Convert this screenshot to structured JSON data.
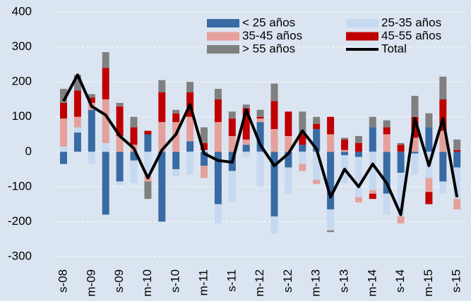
{
  "chart_data": {
    "type": "bar",
    "stacked": true,
    "categories": [
      "s-08",
      null,
      "m-09",
      null,
      "s-09",
      null,
      "m-10",
      null,
      "s-10",
      null,
      "m-11",
      null,
      "s-11",
      null,
      "m-12",
      null,
      "s-12",
      null,
      "m-13",
      null,
      "s-13",
      null,
      "m-14",
      null,
      "s-14",
      null,
      "m-15",
      null,
      "s-15"
    ],
    "series": [
      {
        "name": "< 25 años",
        "color": "#386aa4",
        "values": [
          -35,
          55,
          120,
          -180,
          -85,
          -25,
          50,
          -200,
          -50,
          30,
          -40,
          -150,
          -55,
          20,
          85,
          -185,
          -45,
          20,
          65,
          -165,
          -10,
          -15,
          70,
          -120,
          -60,
          -5,
          70,
          -85,
          -45
        ]
      },
      {
        "name": "25-35 años",
        "color": "#c6d9f0",
        "values": [
          15,
          15,
          -35,
          25,
          -10,
          -65,
          -70,
          0,
          -20,
          -65,
          5,
          -55,
          -90,
          -15,
          -100,
          -50,
          -75,
          -35,
          -80,
          -60,
          -80,
          -115,
          -110,
          -60,
          -125,
          -60,
          -75,
          -35,
          -90
        ]
      },
      {
        "name": "35-45 años",
        "color": "#e6a09c",
        "values": [
          80,
          30,
          20,
          125,
          45,
          20,
          -15,
          85,
          85,
          70,
          -35,
          85,
          45,
          15,
          10,
          65,
          45,
          -20,
          -12,
          50,
          5,
          -15,
          -10,
          50,
          -20,
          40,
          -40,
          60,
          -30
        ]
      },
      {
        "name": "45-55 años",
        "color": "#c00000",
        "values": [
          45,
          75,
          15,
          90,
          85,
          50,
          10,
          85,
          25,
          70,
          20,
          65,
          50,
          90,
          5,
          80,
          70,
          30,
          15,
          50,
          30,
          25,
          -15,
          20,
          20,
          60,
          -35,
          90,
          5
        ]
      },
      {
        "name": "> 55 años",
        "color": "#808080",
        "values": [
          40,
          45,
          10,
          45,
          10,
          30,
          -50,
          35,
          10,
          30,
          45,
          30,
          20,
          10,
          20,
          50,
          0,
          65,
          20,
          -5,
          5,
          20,
          30,
          20,
          5,
          60,
          40,
          65,
          30
        ]
      },
      {
        "name": "Total",
        "type": "line",
        "color": "#000000",
        "values": [
          145,
          220,
          130,
          105,
          45,
          10,
          -75,
          5,
          50,
          135,
          -5,
          -25,
          -30,
          120,
          20,
          -40,
          -5,
          60,
          8,
          -130,
          -50,
          -100,
          -35,
          -90,
          -180,
          95,
          -40,
          95,
          -130
        ]
      }
    ],
    "ylim": [
      -300,
      400
    ],
    "yticks": [
      -300,
      -200,
      -100,
      0,
      100,
      200,
      300,
      400
    ],
    "grid": true,
    "legend": "top"
  }
}
